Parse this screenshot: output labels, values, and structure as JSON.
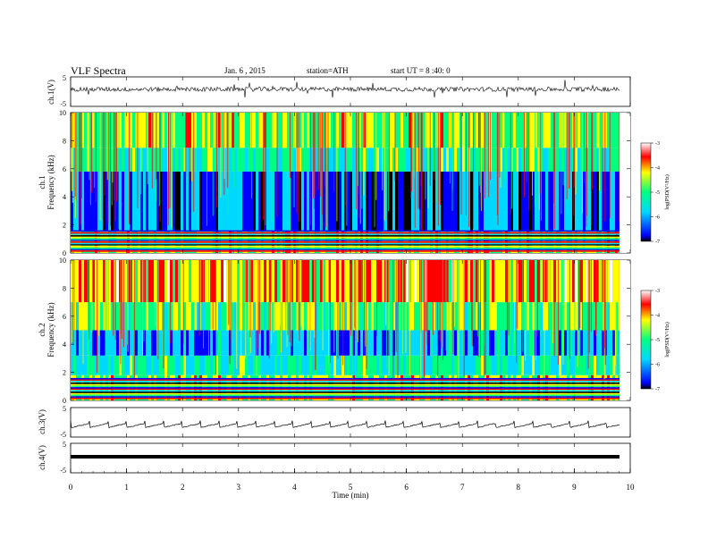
{
  "header": {
    "title": "VLF Spectra",
    "date": "Jan. 6 , 2015",
    "station": "station=ATH",
    "start": "start UT =  8 :40: 0"
  },
  "colors": {
    "colormap": [
      "#000000",
      "#0000ff",
      "#00d8ff",
      "#00ff80",
      "#ffff00",
      "#ff0000",
      "#ffffff"
    ],
    "trace": "#000000"
  },
  "chart_data": [
    {
      "type": "line",
      "name": "ch1-waveform",
      "ylabel": "ch.1(V)",
      "ylim": [
        -5,
        5
      ],
      "yticks": [
        "5",
        "-5"
      ],
      "x_range_min": [
        0,
        9.8
      ],
      "baseline": 0.8,
      "amplitude": 1.5
    },
    {
      "type": "heatmap",
      "name": "ch1-spectrogram",
      "ylabel": "ch.1",
      "ylabel2": "Frequency  (kHz)",
      "ylim": [
        0,
        10
      ],
      "yticks": [
        "0",
        "2",
        "4",
        "6",
        "8",
        "10"
      ],
      "colorbar": {
        "label": "log(PSD(V²/Hz)",
        "min": -7,
        "max": -3,
        "ticks": [
          "-3",
          "-4",
          "-5",
          "-6",
          "-7"
        ]
      },
      "bands_khz": [
        {
          "from": 0,
          "to": 1.6,
          "level": -4.5,
          "note": "mixed colored lines"
        },
        {
          "from": 1.6,
          "to": 5.8,
          "level": -6.3
        },
        {
          "from": 5.8,
          "to": 7.5,
          "level": -5.2
        },
        {
          "from": 7.5,
          "to": 10,
          "level": -4.6
        }
      ]
    },
    {
      "type": "heatmap",
      "name": "ch2-spectrogram",
      "ylabel": "ch.2",
      "ylabel2": "Frequency  (kHz)",
      "ylim": [
        0,
        10
      ],
      "yticks": [
        "0",
        "2",
        "4",
        "6",
        "8",
        "10"
      ],
      "colorbar": {
        "label": "log(PSD(V²/Hz)",
        "min": -7,
        "max": -3,
        "ticks": [
          "-3",
          "-4",
          "-5",
          "-6",
          "-7"
        ]
      },
      "bands_khz": [
        {
          "from": 0,
          "to": 1.8,
          "level": -4.6
        },
        {
          "from": 1.8,
          "to": 3.2,
          "level": -5.3
        },
        {
          "from": 3.2,
          "to": 5.0,
          "level": -6.0
        },
        {
          "from": 5.0,
          "to": 7.0,
          "level": -4.8
        },
        {
          "from": 7.0,
          "to": 10,
          "level": -4.0
        }
      ]
    },
    {
      "type": "line",
      "name": "ch3-waveform",
      "ylabel": "ch.3(V)",
      "ylim": [
        -5,
        5
      ],
      "yticks": [
        "5",
        "-5"
      ],
      "baseline": 0.0,
      "spike_period_min": 0.33
    },
    {
      "type": "line",
      "name": "ch4-waveform",
      "ylabel": "ch.4(V)",
      "ylim": [
        -5,
        5
      ],
      "yticks": [
        "5",
        "-5"
      ],
      "baseline": 0.0
    }
  ],
  "xaxis": {
    "label": "Time  (min)",
    "min": 0,
    "max": 10,
    "ticks": [
      "0",
      "1",
      "2",
      "3",
      "4",
      "5",
      "6",
      "7",
      "8",
      "9",
      "10"
    ]
  }
}
